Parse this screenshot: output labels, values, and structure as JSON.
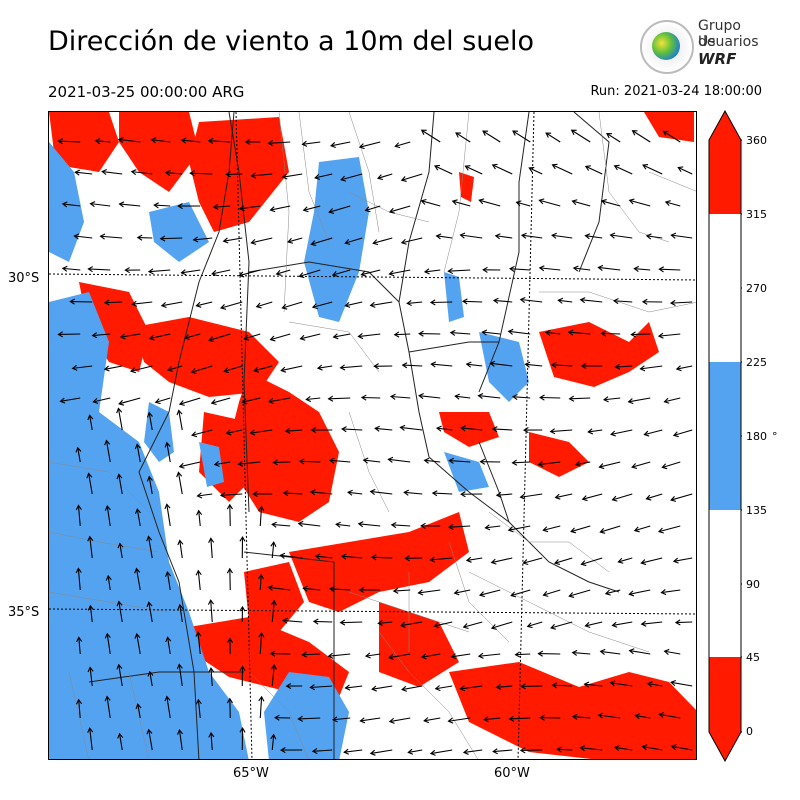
{
  "header": {
    "title": "Dirección de viento a 10m del suelo",
    "valid_time": "2021-03-25 00:00:00 ARG",
    "run_time": "Run: 2021-03-24 18:00:00"
  },
  "logo": {
    "line1": "Grupo de",
    "line2": "Usuarios",
    "line3": "WRF"
  },
  "map": {
    "latitude_labels": [
      "30°S",
      "35°S"
    ],
    "longitude_labels": [
      "65°W",
      "60°W"
    ]
  },
  "colorbar": {
    "ticks": [
      "360",
      "315",
      "270",
      "225",
      "180",
      "135",
      "90",
      "45",
      "0"
    ],
    "unit": "°",
    "colors": {
      "red": "#ff1a00",
      "blue": "#54a3f0",
      "white": "#ffffff"
    }
  }
}
